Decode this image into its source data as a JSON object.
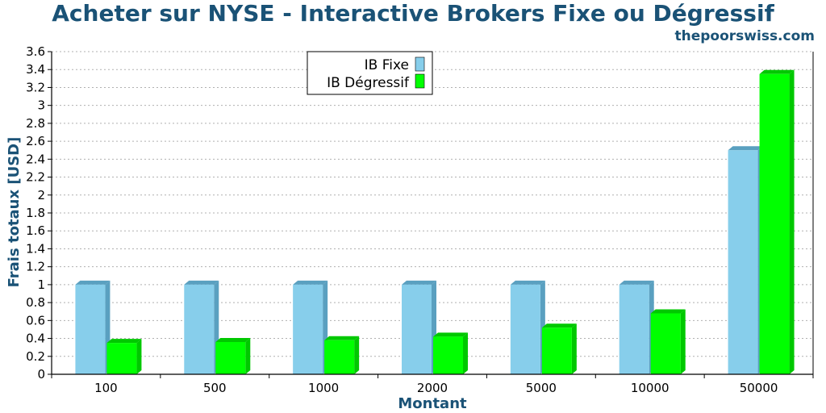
{
  "colors": {
    "title": "#1a5276",
    "series_fixe": "#87ceeb",
    "series_fixe_side": "#5aa0c0",
    "series_degressif": "#00ff00",
    "series_degressif_side": "#00c800"
  },
  "header": {
    "title": "Acheter sur NYSE - Interactive Brokers Fixe ou Dégressif",
    "subtitle": "thepoorswiss.com"
  },
  "chart_data": {
    "type": "bar",
    "title": "Acheter sur NYSE - Interactive Brokers Fixe ou Dégressif",
    "xlabel": "Montant",
    "ylabel": "Frais totaux [USD]",
    "categories": [
      "100",
      "500",
      "1000",
      "2000",
      "5000",
      "10000",
      "50000"
    ],
    "series": [
      {
        "name": "IB Fixe",
        "values": [
          1.0,
          1.0,
          1.0,
          1.0,
          1.0,
          1.0,
          2.5
        ]
      },
      {
        "name": "IB Dégressif",
        "values": [
          0.35,
          0.36,
          0.38,
          0.42,
          0.52,
          0.68,
          3.35
        ]
      }
    ],
    "ylim": [
      0,
      3.6
    ],
    "yticks": [
      "0",
      "0.2",
      "0.4",
      "0.6",
      "0.8",
      "1",
      "1.2",
      "1.4",
      "1.6",
      "1.8",
      "2",
      "2.2",
      "2.4",
      "2.6",
      "2.8",
      "3",
      "3.2",
      "3.4",
      "3.6"
    ],
    "grid": true,
    "legend_position": "top-center"
  }
}
